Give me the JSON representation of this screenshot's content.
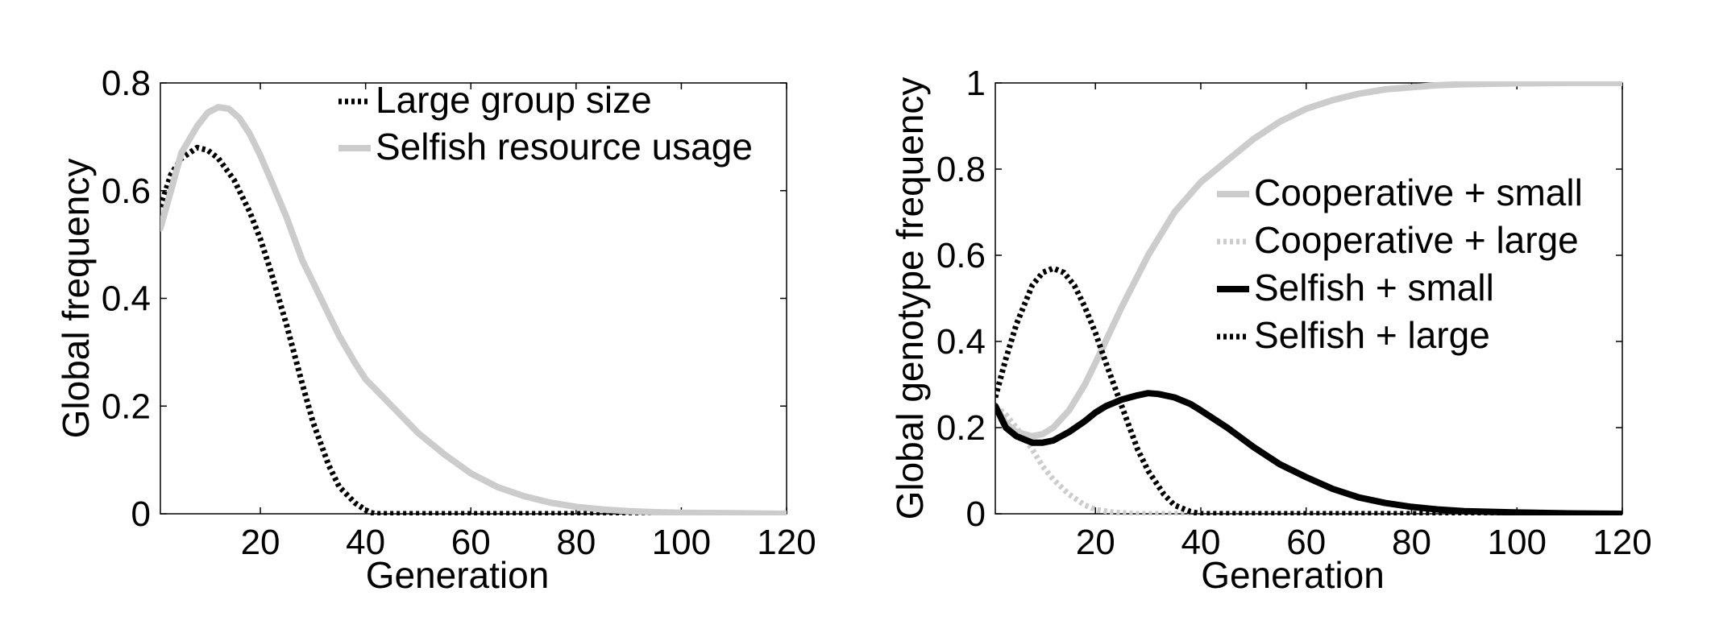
{
  "chart_data": [
    {
      "type": "line",
      "title": "",
      "xlabel": "Generation",
      "ylabel": "Global frequency",
      "xlim": [
        1,
        120
      ],
      "ylim": [
        0,
        0.8
      ],
      "xticks": [
        20,
        40,
        60,
        80,
        100,
        120
      ],
      "yticks": [
        0,
        0.2,
        0.4,
        0.6,
        0.8
      ],
      "xtick_labels": [
        "20",
        "40",
        "60",
        "80",
        "100",
        "120"
      ],
      "ytick_labels": [
        "0",
        "0.2",
        "0.4",
        "0.6",
        "0.8"
      ],
      "grid": false,
      "legend_position": "top-right",
      "series": [
        {
          "name": "Large group size",
          "color": "#000000",
          "style": "dotted",
          "x": [
            1,
            3,
            5,
            8,
            10,
            12,
            15,
            18,
            20,
            22,
            25,
            28,
            30,
            33,
            35,
            38,
            40,
            41,
            42,
            45,
            50,
            60,
            80,
            100,
            120
          ],
          "y": [
            0.57,
            0.63,
            0.66,
            0.68,
            0.675,
            0.66,
            0.62,
            0.56,
            0.51,
            0.45,
            0.35,
            0.24,
            0.17,
            0.09,
            0.05,
            0.02,
            0.007,
            0.002,
            0.0,
            0.0,
            0.0,
            0.0,
            0.0,
            0.0,
            0.0
          ]
        },
        {
          "name": "Selfish resource usage",
          "color": "#cccccc",
          "style": "solid",
          "x": [
            1,
            3,
            5,
            8,
            10,
            12,
            14,
            16,
            18,
            20,
            22,
            25,
            28,
            30,
            33,
            35,
            38,
            40,
            43,
            45,
            50,
            55,
            60,
            65,
            70,
            75,
            80,
            85,
            90,
            95,
            100,
            110,
            120
          ],
          "y": [
            0.53,
            0.6,
            0.67,
            0.72,
            0.745,
            0.755,
            0.752,
            0.735,
            0.705,
            0.665,
            0.62,
            0.55,
            0.47,
            0.43,
            0.37,
            0.33,
            0.28,
            0.25,
            0.22,
            0.2,
            0.15,
            0.11,
            0.075,
            0.05,
            0.033,
            0.021,
            0.013,
            0.008,
            0.005,
            0.003,
            0.002,
            0.001,
            0.0
          ]
        }
      ]
    },
    {
      "type": "line",
      "title": "",
      "xlabel": "Generation",
      "ylabel": "Global genotype frequency",
      "xlim": [
        1,
        120
      ],
      "ylim": [
        0,
        1
      ],
      "xticks": [
        20,
        40,
        60,
        80,
        100,
        120
      ],
      "yticks": [
        0,
        0.2,
        0.4,
        0.6,
        0.8,
        1
      ],
      "xtick_labels": [
        "20",
        "40",
        "60",
        "80",
        "100",
        "120"
      ],
      "ytick_labels": [
        "0",
        "0.2",
        "0.4",
        "0.6",
        "0.8",
        "1"
      ],
      "grid": false,
      "legend_position": "right",
      "series": [
        {
          "name": "Cooperative + small",
          "color": "#cccccc",
          "style": "solid",
          "x": [
            1,
            3,
            5,
            8,
            10,
            12,
            15,
            18,
            20,
            25,
            30,
            35,
            40,
            45,
            50,
            55,
            60,
            65,
            70,
            75,
            80,
            85,
            90,
            100,
            110,
            120
          ],
          "y": [
            0.25,
            0.21,
            0.19,
            0.18,
            0.185,
            0.2,
            0.24,
            0.3,
            0.35,
            0.48,
            0.6,
            0.7,
            0.77,
            0.82,
            0.87,
            0.91,
            0.94,
            0.96,
            0.975,
            0.985,
            0.99,
            0.995,
            0.997,
            0.999,
            1.0,
            1.0
          ]
        },
        {
          "name": "Cooperative + large",
          "color": "#cccccc",
          "style": "dotted",
          "x": [
            1,
            3,
            5,
            8,
            10,
            12,
            15,
            18,
            20,
            23,
            25,
            28,
            30,
            35,
            40,
            60,
            80,
            100,
            120
          ],
          "y": [
            0.25,
            0.23,
            0.2,
            0.15,
            0.11,
            0.08,
            0.045,
            0.02,
            0.01,
            0.004,
            0.002,
            0.0,
            0.0,
            0.0,
            0.0,
            0.0,
            0.0,
            0.0,
            0.0
          ]
        },
        {
          "name": "Selfish + small",
          "color": "#000000",
          "style": "solid",
          "x": [
            1,
            3,
            5,
            8,
            10,
            12,
            15,
            18,
            20,
            22,
            25,
            28,
            30,
            32,
            35,
            38,
            40,
            45,
            50,
            55,
            60,
            65,
            70,
            75,
            80,
            85,
            90,
            100,
            110,
            120
          ],
          "y": [
            0.25,
            0.2,
            0.18,
            0.165,
            0.165,
            0.17,
            0.19,
            0.215,
            0.235,
            0.25,
            0.265,
            0.275,
            0.28,
            0.278,
            0.27,
            0.255,
            0.24,
            0.2,
            0.155,
            0.115,
            0.085,
            0.058,
            0.038,
            0.025,
            0.016,
            0.01,
            0.006,
            0.003,
            0.001,
            0.0
          ]
        },
        {
          "name": "Selfish + large",
          "color": "#000000",
          "style": "dotted",
          "x": [
            1,
            3,
            5,
            8,
            10,
            12,
            14,
            16,
            18,
            20,
            22,
            25,
            28,
            30,
            33,
            35,
            38,
            40,
            45,
            60,
            80,
            100,
            120
          ],
          "y": [
            0.27,
            0.36,
            0.44,
            0.53,
            0.56,
            0.57,
            0.56,
            0.53,
            0.48,
            0.42,
            0.35,
            0.25,
            0.15,
            0.1,
            0.045,
            0.02,
            0.005,
            0.0,
            0.0,
            0.0,
            0.0,
            0.0,
            0.0
          ]
        }
      ]
    }
  ]
}
